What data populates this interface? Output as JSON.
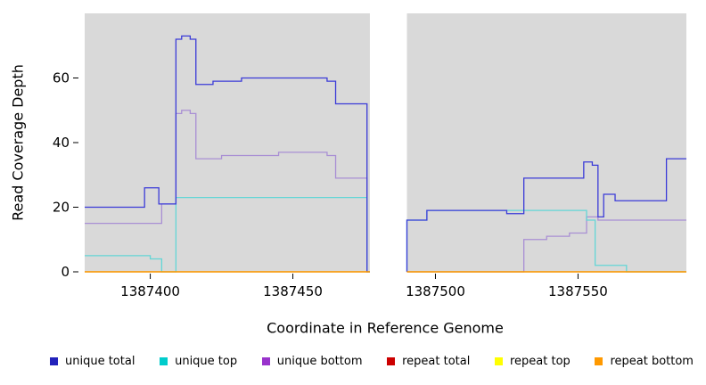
{
  "chart_data": {
    "type": "line",
    "step": true,
    "title": "",
    "xlabel": "Coordinate in Reference Genome",
    "ylabel": "Read Coverage Depth",
    "xlim": [
      1387377,
      1387588
    ],
    "ylim": [
      0,
      80
    ],
    "x_ticks": [
      1387400,
      1387450,
      1387500,
      1387550
    ],
    "y_ticks": [
      0,
      20,
      40,
      60
    ],
    "panel_bg": "#d9d9d9",
    "gap_region": [
      1387477,
      1387490
    ],
    "grid": false,
    "legend_position": "bottom",
    "series": [
      {
        "name": "unique total",
        "color": "#3b3bd8",
        "points": [
          [
            1387377,
            20
          ],
          [
            1387398,
            26
          ],
          [
            1387403,
            21
          ],
          [
            1387409,
            72
          ],
          [
            1387411,
            73
          ],
          [
            1387414,
            72
          ],
          [
            1387416,
            58
          ],
          [
            1387422,
            59
          ],
          [
            1387432,
            60
          ],
          [
            1387462,
            59
          ],
          [
            1387465,
            52
          ],
          [
            1387476,
            0
          ],
          [
            1387477,
            0
          ],
          null,
          [
            1387490,
            0
          ],
          [
            1387490,
            16
          ],
          [
            1387497,
            19
          ],
          [
            1387525,
            18
          ],
          [
            1387531,
            29
          ],
          [
            1387552,
            34
          ],
          [
            1387555,
            33
          ],
          [
            1387557,
            17
          ],
          [
            1387559,
            24
          ],
          [
            1387563,
            22
          ],
          [
            1387581,
            35
          ],
          [
            1387588,
            35
          ]
        ]
      },
      {
        "name": "unique top",
        "color": "#63d6d6",
        "points": [
          [
            1387377,
            5
          ],
          [
            1387400,
            4
          ],
          [
            1387404,
            0
          ],
          [
            1387409,
            23
          ],
          [
            1387476,
            0
          ],
          [
            1387477,
            0
          ],
          null,
          [
            1387490,
            0
          ],
          [
            1387490,
            16
          ],
          [
            1387497,
            19
          ],
          [
            1387553,
            16
          ],
          [
            1387556,
            2
          ],
          [
            1387567,
            0
          ],
          [
            1387588,
            0
          ]
        ]
      },
      {
        "name": "unique bottom",
        "color": "#a98fd4",
        "points": [
          [
            1387377,
            15
          ],
          [
            1387404,
            21
          ],
          [
            1387409,
            49
          ],
          [
            1387411,
            50
          ],
          [
            1387414,
            49
          ],
          [
            1387416,
            35
          ],
          [
            1387425,
            36
          ],
          [
            1387445,
            37
          ],
          [
            1387462,
            36
          ],
          [
            1387465,
            29
          ],
          [
            1387476,
            0
          ],
          [
            1387477,
            0
          ],
          null,
          [
            1387490,
            0
          ],
          [
            1387531,
            10
          ],
          [
            1387539,
            11
          ],
          [
            1387547,
            12
          ],
          [
            1387553,
            17
          ],
          [
            1387557,
            16
          ],
          [
            1387588,
            16
          ]
        ]
      },
      {
        "name": "repeat total",
        "color": "#cc0000",
        "points": [
          [
            1387377,
            0
          ],
          [
            1387477,
            0
          ],
          null,
          [
            1387490,
            0
          ],
          [
            1387588,
            0
          ]
        ]
      },
      {
        "name": "repeat top",
        "color": "#ffff00",
        "points": [
          [
            1387377,
            0
          ],
          [
            1387477,
            0
          ],
          null,
          [
            1387490,
            0
          ],
          [
            1387588,
            0
          ]
        ]
      },
      {
        "name": "repeat bottom",
        "color": "#ff9900",
        "points": [
          [
            1387377,
            0
          ],
          [
            1387477,
            0
          ],
          null,
          [
            1387490,
            0
          ],
          [
            1387588,
            0
          ]
        ]
      }
    ]
  },
  "legend": {
    "items": [
      {
        "label": "unique total",
        "color": "#2222bb"
      },
      {
        "label": "unique top",
        "color": "#00cccc"
      },
      {
        "label": "unique bottom",
        "color": "#9933cc"
      },
      {
        "label": "repeat total",
        "color": "#cc0000"
      },
      {
        "label": "repeat top",
        "color": "#ffff00"
      },
      {
        "label": "repeat bottom",
        "color": "#ff9900"
      }
    ]
  }
}
